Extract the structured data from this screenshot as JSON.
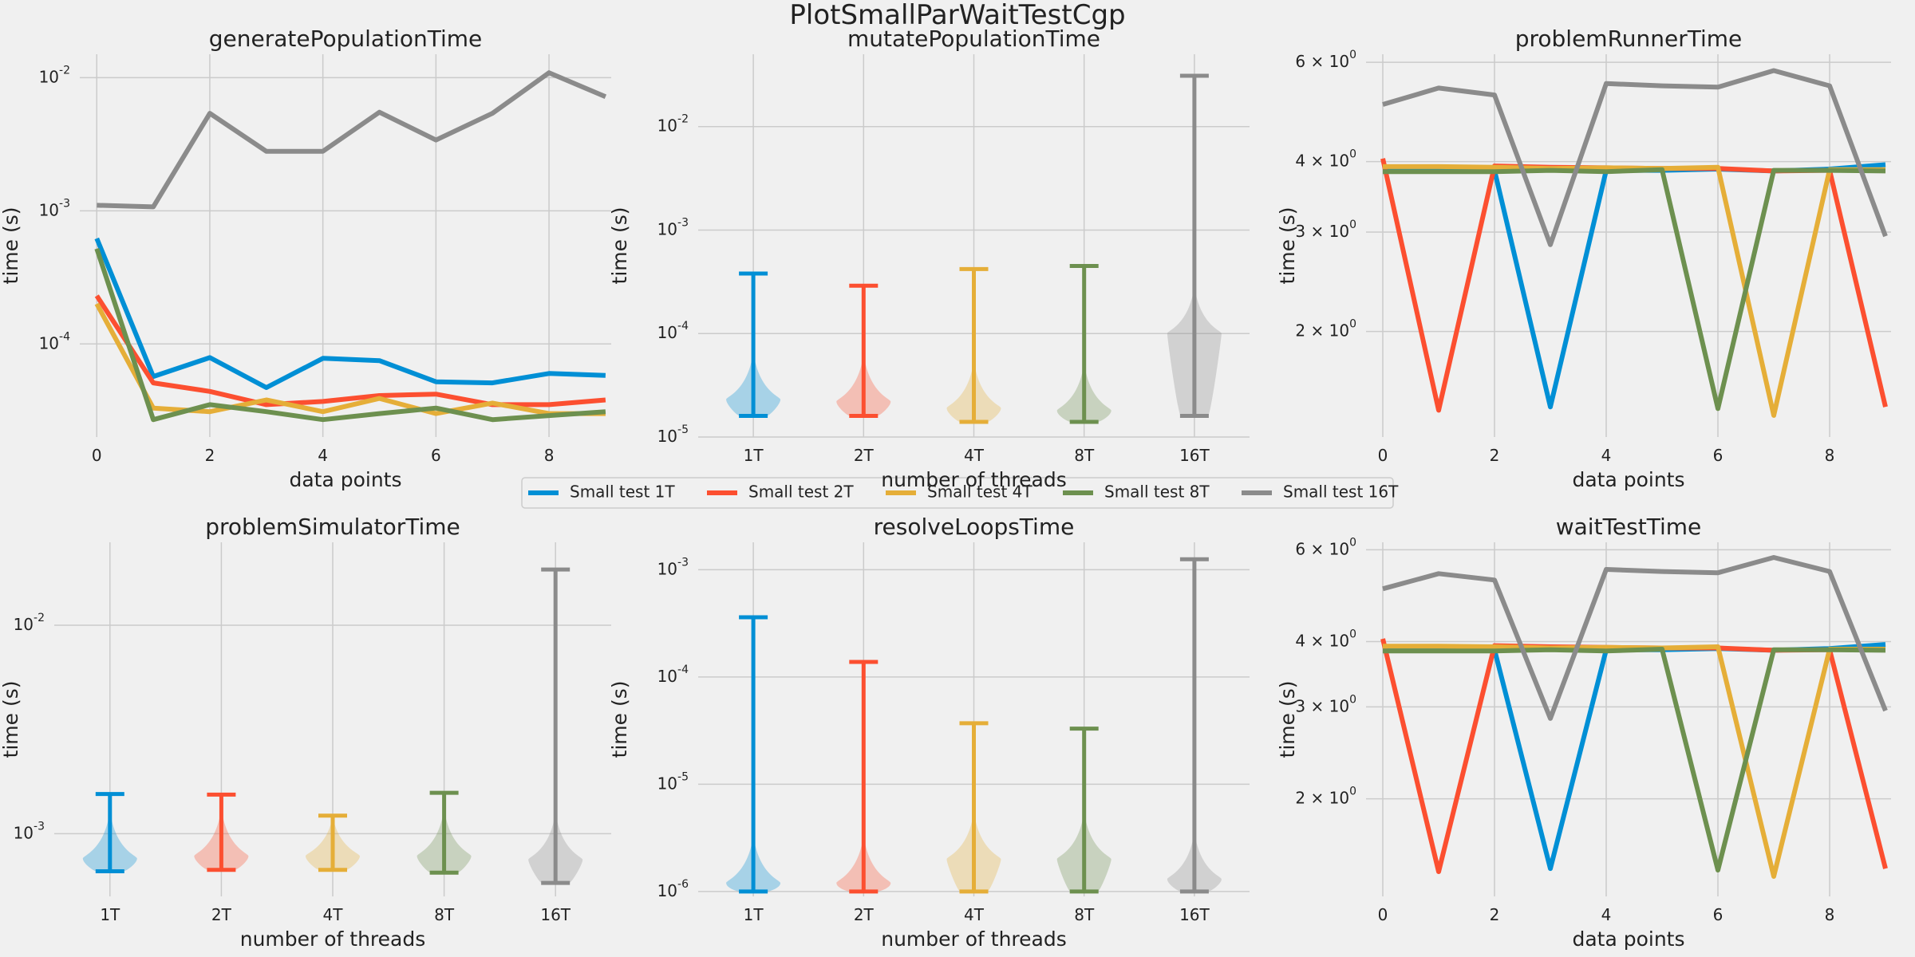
{
  "figure": {
    "title": "PlotSmallParWaitTestCgp",
    "background": "#f0f0f0",
    "grid_color": "#cbcbcb"
  },
  "series_colors": [
    "#008fd5",
    "#fc4f30",
    "#e5ae38",
    "#6d904f",
    "#8b8b8b"
  ],
  "legend": {
    "placement": "center",
    "entries": [
      "Small test 1T",
      "Small test 2T",
      "Small test 4T",
      "Small test 8T",
      "Small test 16T"
    ]
  },
  "chart_data": [
    {
      "type": "line",
      "title": "generatePopulationTime",
      "xlabel": "data points",
      "ylabel": "time (s)",
      "yscale": "log",
      "ylim": [
        2e-05,
        0.015
      ],
      "yticks": [
        {
          "value": 0.0001,
          "label": "10^-4"
        },
        {
          "value": 0.001,
          "label": "10^-3"
        },
        {
          "value": 0.01,
          "label": "10^-2"
        }
      ],
      "xlim": [
        -0.3,
        9.1
      ],
      "xticks": [
        0,
        2,
        4,
        6,
        8
      ],
      "x": [
        0,
        1,
        2,
        3,
        4,
        5,
        6,
        7,
        8,
        9
      ],
      "series": [
        {
          "name": "Small test 1T",
          "values": [
            0.00062,
            5.7e-05,
            7.9e-05,
            4.7e-05,
            7.8e-05,
            7.5e-05,
            5.2e-05,
            5.1e-05,
            6e-05,
            5.8e-05
          ]
        },
        {
          "name": "Small test 2T",
          "values": [
            0.00023,
            5.1e-05,
            4.4e-05,
            3.5e-05,
            3.7e-05,
            4.1e-05,
            4.2e-05,
            3.5e-05,
            3.5e-05,
            3.8e-05
          ]
        },
        {
          "name": "Small test 4T",
          "values": [
            0.0002,
            3.3e-05,
            3.1e-05,
            3.8e-05,
            3.1e-05,
            3.9e-05,
            3e-05,
            3.6e-05,
            3e-05,
            3e-05
          ]
        },
        {
          "name": "Small test 8T",
          "values": [
            0.00052,
            2.7e-05,
            3.5e-05,
            3.1e-05,
            2.7e-05,
            3e-05,
            3.3e-05,
            2.7e-05,
            2.9e-05,
            3.1e-05
          ]
        },
        {
          "name": "Small test 16T",
          "values": [
            0.0011,
            0.00107,
            0.0054,
            0.0028,
            0.0028,
            0.0055,
            0.0034,
            0.0054,
            0.0109,
            0.0072
          ]
        }
      ]
    },
    {
      "type": "violin",
      "title": "mutatePopulationTime",
      "xlabel": "number of threads",
      "ylabel": "time (s)",
      "yscale": "log",
      "ylim": [
        1e-05,
        0.05
      ],
      "yticks": [
        {
          "value": 1e-05,
          "label": "10^-5"
        },
        {
          "value": 0.0001,
          "label": "10^-4"
        },
        {
          "value": 0.001,
          "label": "10^-3"
        },
        {
          "value": 0.01,
          "label": "10^-2"
        }
      ],
      "categories": [
        "1T",
        "2T",
        "4T",
        "8T",
        "16T"
      ],
      "series": [
        {
          "name": "Small test 1T",
          "min": 1.6e-05,
          "max": 0.00038,
          "mode": 2.3e-05
        },
        {
          "name": "Small test 2T",
          "min": 1.6e-05,
          "max": 0.00029,
          "mode": 2.2e-05
        },
        {
          "name": "Small test 4T",
          "min": 1.4e-05,
          "max": 0.00042,
          "mode": 1.9e-05
        },
        {
          "name": "Small test 8T",
          "min": 1.4e-05,
          "max": 0.00045,
          "mode": 1.8e-05
        },
        {
          "name": "Small test 16T",
          "min": 1.6e-05,
          "max": 0.031,
          "mode": 0.0001
        }
      ]
    },
    {
      "type": "line",
      "title": "problemRunnerTime",
      "xlabel": "data points",
      "ylabel": "time (s)",
      "yscale": "log",
      "ylim": [
        1.3,
        6.2
      ],
      "yticks": [
        {
          "value": 2,
          "label": "2 × 10^0"
        },
        {
          "value": 3,
          "label": "3 × 10^0"
        },
        {
          "value": 4,
          "label": "4 × 10^0"
        },
        {
          "value": 6,
          "label": "6 × 10^0"
        }
      ],
      "xlim": [
        -0.3,
        9.1
      ],
      "xticks": [
        0,
        2,
        4,
        6,
        8
      ],
      "x": [
        0,
        1,
        2,
        3,
        4,
        5,
        6,
        7,
        8,
        9
      ],
      "series": [
        {
          "name": "Small test 1T",
          "values": [
            3.85,
            3.85,
            3.86,
            1.47,
            3.86,
            3.86,
            3.88,
            3.85,
            3.88,
            3.95
          ]
        },
        {
          "name": "Small test 2T",
          "values": [
            4.05,
            1.45,
            3.93,
            3.91,
            3.9,
            3.89,
            3.89,
            3.85,
            3.86,
            1.47
          ]
        },
        {
          "name": "Small test 4T",
          "values": [
            3.92,
            3.92,
            3.91,
            3.89,
            3.9,
            3.89,
            3.91,
            1.42,
            3.87,
            3.87
          ]
        },
        {
          "name": "Small test 8T",
          "values": [
            3.84,
            3.84,
            3.84,
            3.86,
            3.84,
            3.87,
            1.46,
            3.86,
            3.86,
            3.85
          ]
        },
        {
          "name": "Small test 16T",
          "values": [
            5.05,
            5.4,
            5.25,
            2.85,
            5.5,
            5.45,
            5.42,
            5.8,
            5.45,
            2.95
          ]
        }
      ]
    },
    {
      "type": "violin",
      "title": "problemSimulatorTime",
      "xlabel": "number of threads",
      "ylabel": "time (s)",
      "yscale": "log",
      "ylim": [
        0.0005,
        0.025
      ],
      "yticks": [
        {
          "value": 0.001,
          "label": "10^-3"
        },
        {
          "value": 0.01,
          "label": "10^-2"
        }
      ],
      "categories": [
        "1T",
        "2T",
        "4T",
        "8T",
        "16T"
      ],
      "series": [
        {
          "name": "Small test 1T",
          "min": 0.00066,
          "max": 0.00155,
          "mode": 0.00076
        },
        {
          "name": "Small test 2T",
          "min": 0.00067,
          "max": 0.00154,
          "mode": 0.00078
        },
        {
          "name": "Small test 4T",
          "min": 0.00067,
          "max": 0.00122,
          "mode": 0.00078
        },
        {
          "name": "Small test 8T",
          "min": 0.00065,
          "max": 0.00157,
          "mode": 0.00078
        },
        {
          "name": "Small test 16T",
          "min": 0.00058,
          "max": 0.0185,
          "mode": 0.00075
        }
      ]
    },
    {
      "type": "violin",
      "title": "resolveLoopsTime",
      "xlabel": "number of threads",
      "ylabel": "time (s)",
      "yscale": "log",
      "ylim": [
        9e-07,
        0.0018
      ],
      "yticks": [
        {
          "value": 1e-06,
          "label": "10^-6"
        },
        {
          "value": 1e-05,
          "label": "10^-5"
        },
        {
          "value": 0.0001,
          "label": "10^-4"
        },
        {
          "value": 0.001,
          "label": "10^-3"
        }
      ],
      "categories": [
        "1T",
        "2T",
        "4T",
        "8T",
        "16T"
      ],
      "series": [
        {
          "name": "Small test 1T",
          "min": 1e-06,
          "max": 0.00036,
          "mode": 1.2e-06
        },
        {
          "name": "Small test 2T",
          "min": 1e-06,
          "max": 0.000138,
          "mode": 1.2e-06
        },
        {
          "name": "Small test 4T",
          "min": 1e-06,
          "max": 3.7e-05,
          "mode": 2e-06
        },
        {
          "name": "Small test 8T",
          "min": 1e-06,
          "max": 3.3e-05,
          "mode": 2e-06
        },
        {
          "name": "Small test 16T",
          "min": 1e-06,
          "max": 0.00125,
          "mode": 1.3e-06
        }
      ]
    },
    {
      "type": "line",
      "title": "waitTestTime",
      "xlabel": "data points",
      "ylabel": "time (s)",
      "yscale": "log",
      "ylim": [
        1.3,
        6.2
      ],
      "yticks": [
        {
          "value": 2,
          "label": "2 × 10^0"
        },
        {
          "value": 3,
          "label": "3 × 10^0"
        },
        {
          "value": 4,
          "label": "4 × 10^0"
        },
        {
          "value": 6,
          "label": "6 × 10^0"
        }
      ],
      "xlim": [
        -0.3,
        9.1
      ],
      "xticks": [
        0,
        2,
        4,
        6,
        8
      ],
      "x": [
        0,
        1,
        2,
        3,
        4,
        5,
        6,
        7,
        8,
        9
      ],
      "series": [
        {
          "name": "Small test 1T",
          "values": [
            3.85,
            3.85,
            3.86,
            1.47,
            3.86,
            3.86,
            3.88,
            3.85,
            3.88,
            3.95
          ]
        },
        {
          "name": "Small test 2T",
          "values": [
            4.05,
            1.45,
            3.93,
            3.91,
            3.9,
            3.89,
            3.89,
            3.85,
            3.86,
            1.47
          ]
        },
        {
          "name": "Small test 4T",
          "values": [
            3.92,
            3.92,
            3.91,
            3.89,
            3.9,
            3.89,
            3.91,
            1.42,
            3.87,
            3.87
          ]
        },
        {
          "name": "Small test 8T",
          "values": [
            3.84,
            3.84,
            3.84,
            3.86,
            3.84,
            3.87,
            1.46,
            3.86,
            3.86,
            3.85
          ]
        },
        {
          "name": "Small test 16T",
          "values": [
            5.05,
            5.4,
            5.25,
            2.85,
            5.5,
            5.45,
            5.42,
            5.8,
            5.45,
            2.95
          ]
        }
      ]
    }
  ]
}
